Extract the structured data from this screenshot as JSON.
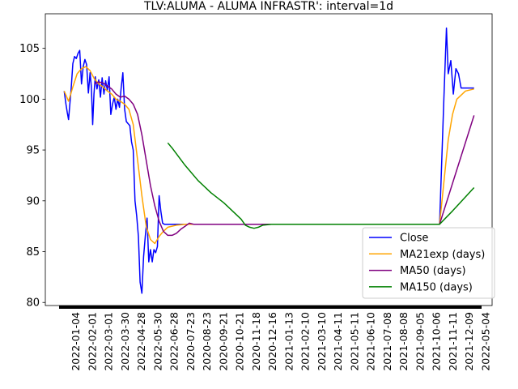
{
  "chart_data": {
    "type": "line",
    "title": "TLV:ALUMA - ALUMA INFRASTR': interval=1d",
    "xlabel": "",
    "ylabel": "",
    "ylim": [
      79.7,
      108.4
    ],
    "yticks": [
      80,
      85,
      90,
      95,
      100,
      105
    ],
    "x_tick_labels": [
      "2022-01-04",
      "2022-02-01",
      "2022-03-01",
      "2022-03-30",
      "2022-04-28",
      "2022-05-30",
      "2022-06-28",
      "2020-07-23",
      "2020-08-23",
      "2020-09-21",
      "2020-10-21",
      "2020-11-18",
      "2020-12-16",
      "2021-01-13",
      "2021-02-10",
      "2021-03-10",
      "2021-04-11",
      "2021-05-11",
      "2021-06-10",
      "2021-07-08",
      "2021-08-08",
      "2021-09-05",
      "2021-10-06",
      "2021-11-11",
      "2021-12-09",
      "2022-05-04"
    ],
    "legend_position": "lower-right",
    "series": [
      {
        "name": "Close",
        "color": "#0000ff",
        "points": [
          [
            0,
            100.8
          ],
          [
            0.2,
            99.5
          ],
          [
            0.35,
            98.7
          ],
          [
            0.5,
            98.0
          ],
          [
            0.65,
            99.5
          ],
          [
            0.8,
            101.0
          ],
          [
            1.0,
            103.5
          ],
          [
            1.2,
            104.2
          ],
          [
            1.4,
            104.0
          ],
          [
            1.6,
            104.5
          ],
          [
            1.8,
            104.8
          ],
          [
            2.0,
            101.5
          ],
          [
            2.2,
            103.2
          ],
          [
            2.4,
            103.9
          ],
          [
            2.6,
            103.4
          ],
          [
            2.8,
            100.6
          ],
          [
            3.0,
            102.6
          ],
          [
            3.15,
            101.2
          ],
          [
            3.3,
            97.5
          ],
          [
            3.45,
            100.5
          ],
          [
            3.6,
            102.2
          ],
          [
            3.8,
            101.0
          ],
          [
            4.0,
            101.9
          ],
          [
            4.2,
            100.2
          ],
          [
            4.4,
            102.1
          ],
          [
            4.6,
            100.5
          ],
          [
            4.8,
            101.8
          ],
          [
            5.0,
            100.9
          ],
          [
            5.2,
            102.2
          ],
          [
            5.4,
            98.5
          ],
          [
            5.6,
            99.5
          ],
          [
            5.8,
            100.2
          ],
          [
            6.0,
            99.0
          ],
          [
            6.2,
            100.0
          ],
          [
            6.4,
            99.2
          ],
          [
            6.6,
            101.1
          ],
          [
            6.8,
            102.6
          ],
          [
            7.0,
            99.0
          ],
          [
            7.2,
            97.8
          ],
          [
            7.4,
            97.6
          ],
          [
            7.6,
            97.4
          ],
          [
            7.8,
            95.8
          ],
          [
            8.0,
            95.0
          ],
          [
            8.2,
            90.0
          ],
          [
            8.4,
            88.5
          ],
          [
            8.6,
            86.5
          ],
          [
            8.8,
            82.0
          ],
          [
            9.0,
            80.9
          ],
          [
            9.2,
            84.5
          ],
          [
            9.4,
            86.5
          ],
          [
            9.6,
            88.3
          ],
          [
            9.8,
            84.0
          ],
          [
            10.0,
            85.2
          ],
          [
            10.2,
            84.0
          ],
          [
            10.4,
            85.2
          ],
          [
            10.6,
            84.9
          ],
          [
            10.8,
            85.5
          ],
          [
            11.0,
            90.5
          ],
          [
            11.2,
            89.0
          ],
          [
            11.4,
            87.8
          ],
          [
            11.6,
            87.7
          ],
          [
            12.0,
            87.7
          ],
          [
            43.5,
            87.7
          ],
          [
            44.0,
            100.0
          ],
          [
            44.3,
            107.0
          ],
          [
            44.5,
            102.5
          ],
          [
            44.8,
            103.8
          ],
          [
            45.1,
            100.5
          ],
          [
            45.4,
            103.0
          ],
          [
            45.7,
            102.5
          ],
          [
            46.0,
            101.1
          ],
          [
            47.5,
            101.1
          ]
        ]
      },
      {
        "name": "MA21exp (days)",
        "color": "#ffa500",
        "points": [
          [
            0,
            100.8
          ],
          [
            0.5,
            99.8
          ],
          [
            1.0,
            101.2
          ],
          [
            1.5,
            102.5
          ],
          [
            2.0,
            103.0
          ],
          [
            2.5,
            103.2
          ],
          [
            3.0,
            102.8
          ],
          [
            3.5,
            102.0
          ],
          [
            4.0,
            101.5
          ],
          [
            4.5,
            101.2
          ],
          [
            5.0,
            100.8
          ],
          [
            5.5,
            100.5
          ],
          [
            6.0,
            100.0
          ],
          [
            6.5,
            99.8
          ],
          [
            7.0,
            99.5
          ],
          [
            7.5,
            99.0
          ],
          [
            8.0,
            97.5
          ],
          [
            8.5,
            94.0
          ],
          [
            9.0,
            90.5
          ],
          [
            9.5,
            87.5
          ],
          [
            10.0,
            86.2
          ],
          [
            10.5,
            85.8
          ],
          [
            11.0,
            86.5
          ],
          [
            11.5,
            87.0
          ],
          [
            12.0,
            87.4
          ],
          [
            13.0,
            87.6
          ],
          [
            14.0,
            87.7
          ],
          [
            43.5,
            87.7
          ],
          [
            44.5,
            96.0
          ],
          [
            45.0,
            98.5
          ],
          [
            45.5,
            100.0
          ],
          [
            46.5,
            100.8
          ],
          [
            47.5,
            101.0
          ]
        ]
      },
      {
        "name": "MA50 (days)",
        "color": "#800080",
        "points": [
          [
            3.5,
            101.5
          ],
          [
            4.0,
            101.7
          ],
          [
            4.5,
            101.6
          ],
          [
            5.0,
            101.3
          ],
          [
            5.5,
            101.0
          ],
          [
            6.0,
            100.5
          ],
          [
            6.5,
            100.2
          ],
          [
            7.0,
            100.3
          ],
          [
            7.5,
            100.0
          ],
          [
            8.0,
            99.5
          ],
          [
            8.5,
            98.5
          ],
          [
            9.0,
            96.5
          ],
          [
            9.5,
            94.0
          ],
          [
            10.0,
            91.5
          ],
          [
            10.5,
            89.5
          ],
          [
            11.0,
            88.0
          ],
          [
            11.5,
            87.0
          ],
          [
            12.0,
            86.6
          ],
          [
            12.5,
            86.6
          ],
          [
            13.0,
            86.8
          ],
          [
            13.5,
            87.2
          ],
          [
            14.0,
            87.5
          ],
          [
            14.5,
            87.8
          ],
          [
            15.0,
            87.7
          ],
          [
            43.5,
            87.7
          ],
          [
            47.5,
            98.4
          ]
        ]
      },
      {
        "name": "MA150 (days)",
        "color": "#008000",
        "points": [
          [
            12.0,
            95.7
          ],
          [
            12.5,
            95.2
          ],
          [
            14.0,
            93.5
          ],
          [
            15.5,
            92.0
          ],
          [
            17.0,
            90.8
          ],
          [
            18.5,
            89.8
          ],
          [
            19.5,
            89.0
          ],
          [
            20.5,
            88.2
          ],
          [
            21.0,
            87.6
          ],
          [
            21.5,
            87.4
          ],
          [
            22.0,
            87.3
          ],
          [
            22.5,
            87.4
          ],
          [
            23.0,
            87.6
          ],
          [
            24.0,
            87.7
          ],
          [
            43.5,
            87.7
          ],
          [
            45.0,
            89.0
          ],
          [
            47.5,
            91.3
          ]
        ]
      }
    ]
  }
}
